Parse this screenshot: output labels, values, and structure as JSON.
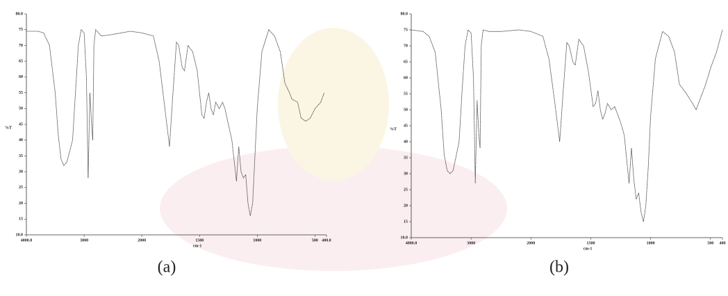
{
  "chart_data": [
    {
      "type": "line",
      "caption": "(a)",
      "x_label": "cm-1",
      "y_label": "%T",
      "color": "#333333",
      "x_scale_break": 2000,
      "x_scale_factor": 2,
      "xlim": [
        4000,
        400
      ],
      "ylim": [
        10,
        80
      ],
      "xticks": [
        {
          "value": 4000,
          "label": "4000.0"
        },
        3000,
        2000,
        1500,
        1000,
        500,
        {
          "value": 400,
          "label": "400.0"
        }
      ],
      "yticks": [
        {
          "value": 10,
          "label": "10.0"
        },
        15,
        20,
        25,
        30,
        35,
        40,
        45,
        50,
        55,
        60,
        65,
        70,
        75,
        {
          "value": 80,
          "label": "80.0"
        }
      ],
      "x": [
        4000,
        3800,
        3700,
        3600,
        3500,
        3450,
        3400,
        3350,
        3300,
        3200,
        3150,
        3100,
        3050,
        3000,
        2960,
        2930,
        2900,
        2870,
        2850,
        2830,
        2800,
        2700,
        2500,
        2200,
        2000,
        1900,
        1850,
        1800,
        1760,
        1730,
        1700,
        1680,
        1650,
        1630,
        1600,
        1560,
        1520,
        1480,
        1460,
        1440,
        1420,
        1400,
        1380,
        1360,
        1330,
        1300,
        1280,
        1250,
        1220,
        1180,
        1160,
        1140,
        1120,
        1100,
        1080,
        1060,
        1040,
        1020,
        1000,
        960,
        900,
        850,
        800,
        760,
        720,
        700,
        650,
        620,
        580,
        540,
        500,
        450,
        420
      ],
      "values": [
        74.5,
        74.5,
        74,
        70,
        55,
        42,
        34,
        32,
        33,
        40,
        55,
        70,
        75,
        74,
        60,
        28,
        55,
        45,
        40,
        70,
        75,
        73,
        73.5,
        74.5,
        74,
        73,
        65,
        50,
        38,
        55,
        71,
        70,
        63,
        62,
        70,
        68,
        62,
        48,
        47,
        52,
        55,
        50,
        48,
        52,
        50,
        52,
        50,
        45,
        40,
        27,
        38,
        30,
        28,
        29,
        20,
        16,
        20,
        35,
        50,
        68,
        75,
        73,
        68,
        58,
        55,
        53,
        52,
        47,
        46,
        47,
        50,
        52,
        55
      ]
    },
    {
      "type": "line",
      "caption": "(b)",
      "x_label": "cm-1",
      "y_label": "%T",
      "color": "#333333",
      "x_scale_break": 2000,
      "x_scale_factor": 2,
      "xlim": [
        4000,
        400
      ],
      "ylim": [
        10,
        80
      ],
      "xticks": [
        {
          "value": 4000,
          "label": "4000.0"
        },
        3000,
        2000,
        1500,
        1000,
        500,
        400
      ],
      "yticks": [
        {
          "value": 10,
          "label": "10.0"
        },
        15,
        20,
        25,
        30,
        35,
        40,
        45,
        50,
        55,
        60,
        65,
        70,
        75,
        {
          "value": 80,
          "label": "80.0"
        }
      ],
      "x": [
        4000,
        3800,
        3700,
        3600,
        3500,
        3450,
        3400,
        3350,
        3300,
        3200,
        3150,
        3100,
        3050,
        3000,
        2960,
        2930,
        2900,
        2870,
        2850,
        2830,
        2800,
        2700,
        2500,
        2200,
        2000,
        1900,
        1850,
        1800,
        1760,
        1730,
        1700,
        1680,
        1650,
        1630,
        1600,
        1560,
        1520,
        1480,
        1460,
        1440,
        1420,
        1400,
        1380,
        1360,
        1330,
        1300,
        1280,
        1250,
        1220,
        1180,
        1160,
        1140,
        1120,
        1100,
        1080,
        1060,
        1040,
        1020,
        1000,
        960,
        900,
        850,
        800,
        760,
        720,
        700,
        650,
        620,
        580,
        540,
        500,
        450,
        400
      ],
      "values": [
        75,
        74.5,
        73,
        68,
        50,
        36,
        31,
        30,
        31,
        40,
        56,
        70,
        75,
        74,
        60,
        27,
        53,
        42,
        38,
        70,
        75,
        74.5,
        74.5,
        75,
        74.5,
        73,
        66,
        52,
        40,
        56,
        71,
        70,
        65,
        64,
        72,
        70,
        62,
        51,
        52,
        56,
        50,
        47,
        49,
        52,
        50,
        51,
        49,
        46,
        42,
        27,
        38,
        28,
        22,
        24,
        18,
        15,
        20,
        32,
        48,
        66,
        74.5,
        73,
        68,
        58,
        56,
        55,
        52,
        50,
        54,
        58,
        63,
        68,
        75
      ]
    }
  ]
}
